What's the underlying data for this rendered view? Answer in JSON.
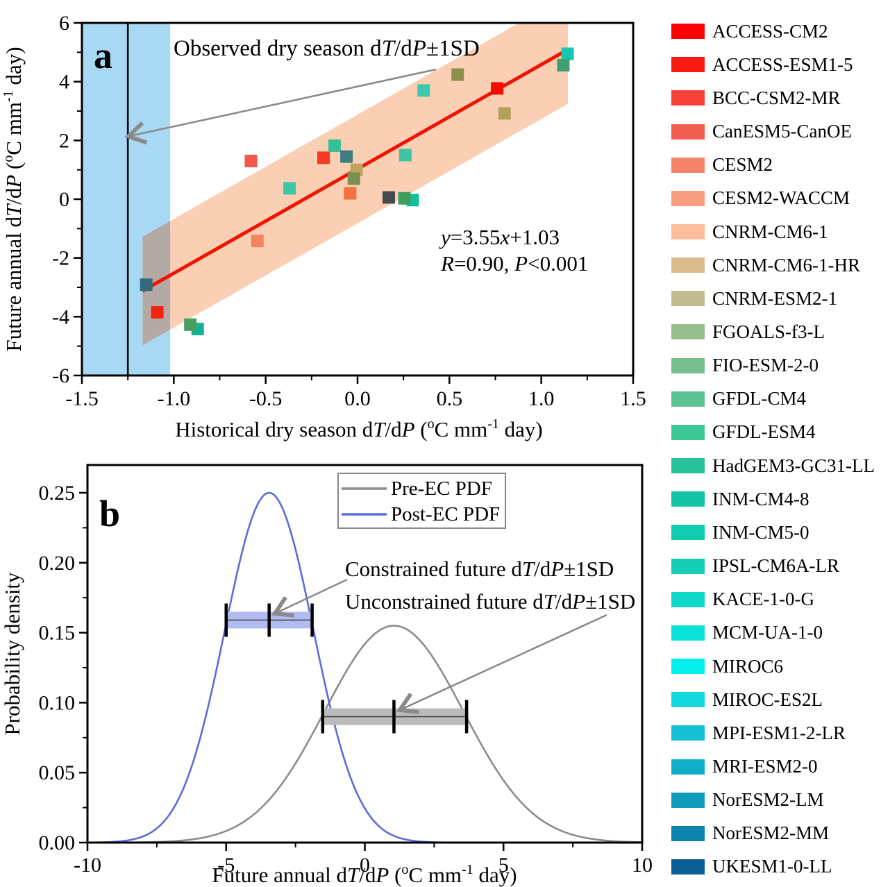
{
  "labels": {
    "panel_a": "a",
    "panel_b": "b",
    "obs": {
      "t1": "Observed dry season d",
      "i1": "T",
      "t2": "/d",
      "i2": "P",
      "t3": "±1SD"
    },
    "eq1": {
      "i1": "y",
      "t1": "=3.55",
      "i2": "x",
      "t2": "+1.03"
    },
    "eq2": {
      "i1": "R",
      "t1": "=0.90, ",
      "i2": "P",
      "t2": "<0.001"
    },
    "constrained": {
      "t1": "Constrained future d",
      "i1": "T",
      "t2": "/d",
      "i2": "P",
      "t3": "±1SD"
    },
    "unconstrained": {
      "t1": "Unconstrained future d",
      "i1": "T",
      "t2": "/d",
      "i2": "P",
      "t3": "±1SD"
    },
    "pdf_legend": {
      "pre": "Pre-EC PDF",
      "post": "Post-EC PDF"
    },
    "xlabel_a": {
      "t1": "Historical dry season d",
      "i1": "T",
      "t2": "/d",
      "i2": "P",
      "t3": " (",
      "s1": "o",
      "t4": "C mm",
      "s2": "-1",
      "t5": " day)"
    },
    "ylabel_a": {
      "t1": "Future annual d",
      "i1": "T",
      "t2": "/d",
      "i2": "P",
      "t3": " (",
      "s1": "o",
      "t4": "C mm",
      "s2": "-1",
      "t5": " day)"
    },
    "xlabel_b": {
      "t1": "Future annual d",
      "i1": "T",
      "t2": "/d",
      "i2": "P",
      "t3": " (",
      "s1": "o",
      "t4": "C mm",
      "s2": "-1",
      "t5": " day)"
    },
    "ylabel_b": "Probability density"
  },
  "chart_data": [
    {
      "id": "a",
      "type": "scatter",
      "xlabel": "Historical dry season dT/dP (°C mm⁻¹ day)",
      "ylabel": "Future annual dT/dP (°C mm⁻¹ day)",
      "xlim": [
        -1.5,
        1.5
      ],
      "ylim": [
        -6,
        6
      ],
      "x_major_ticks": [
        -1.5,
        -1.0,
        -0.5,
        0.0,
        0.5,
        1.0,
        1.5
      ],
      "x_tick_labels": [
        "-1.5",
        "-1.0",
        "-0.5",
        "0.0",
        "0.5",
        "1.0",
        "1.5"
      ],
      "x_minor_step": 0.25,
      "y_major_ticks": [
        -6,
        -4,
        -2,
        0,
        2,
        4,
        6
      ],
      "y_tick_labels": [
        "-6",
        "-4",
        "-2",
        "0",
        "2",
        "4",
        "6"
      ],
      "y_minor_step": 1,
      "equation": "y=3.55x+1.03",
      "stats": "R=0.90, P<0.001",
      "annotation": "Observed dry season dT/dP±1SD",
      "regression_line": {
        "slope": 3.55,
        "intercept": 1.03,
        "x_start": -1.17,
        "x_end": 1.115,
        "color": "#ee1403"
      },
      "confidence_band": {
        "half_width": 1.85,
        "x_start": -1.17,
        "x_end": 1.145,
        "color": "#facfb3"
      },
      "observed_band": {
        "x_start": -1.5,
        "x_end": -1.02,
        "center_line_x": -1.25,
        "color": "#a7d9f5",
        "center_line_color": "#000000"
      },
      "overlap_region_color": "#b4a9a5",
      "marker_size_px": 18,
      "points": [
        {
          "x": -1.15,
          "y": -2.91,
          "color": "#326b7e"
        },
        {
          "x": -1.09,
          "y": -3.85,
          "color": "#f42410"
        },
        {
          "x": -0.87,
          "y": -4.42,
          "color": "#12b394"
        },
        {
          "x": -0.91,
          "y": -4.27,
          "color": "#4a9e60"
        },
        {
          "x": -0.545,
          "y": -1.42,
          "color": "#f5835f"
        },
        {
          "x": -0.58,
          "y": 1.3,
          "color": "#f15849"
        },
        {
          "x": -0.37,
          "y": 0.37,
          "color": "#3ec7a4"
        },
        {
          "x": -0.185,
          "y": 1.41,
          "color": "#f23a26"
        },
        {
          "x": -0.125,
          "y": 1.82,
          "color": "#38c094"
        },
        {
          "x": -0.06,
          "y": 1.45,
          "color": "#3e7d80"
        },
        {
          "x": -0.005,
          "y": 1.0,
          "color": "#c2a35d"
        },
        {
          "x": -0.02,
          "y": 0.7,
          "color": "#7d8d50"
        },
        {
          "x": -0.04,
          "y": 0.2,
          "color": "#f4703e"
        },
        {
          "x": 0.17,
          "y": 0.06,
          "color": "#474850"
        },
        {
          "x": 0.3,
          "y": -0.03,
          "color": "#10bf9f"
        },
        {
          "x": 0.255,
          "y": 0.03,
          "color": "#3f9e5e"
        },
        {
          "x": 0.26,
          "y": 1.5,
          "color": "#41c4a3"
        },
        {
          "x": 0.36,
          "y": 3.7,
          "color": "#3cc9ae"
        },
        {
          "x": 0.545,
          "y": 4.24,
          "color": "#8e8f4c"
        },
        {
          "x": 0.76,
          "y": 3.77,
          "color": "#f60d00"
        },
        {
          "x": 0.8,
          "y": 2.92,
          "color": "#b49f5c"
        },
        {
          "x": 1.143,
          "y": 4.95,
          "color": "#17c7b0"
        },
        {
          "x": 1.12,
          "y": 4.56,
          "color": "#3f9e74"
        }
      ]
    },
    {
      "id": "b",
      "type": "line",
      "xlabel": "Future annual dT/dP (°C mm⁻¹ day)",
      "ylabel": "Probability density",
      "xlim": [
        -10,
        10
      ],
      "ylim": [
        0,
        0.27
      ],
      "x_major_ticks": [
        -10,
        -5,
        0,
        5,
        10
      ],
      "x_tick_labels": [
        "-10",
        "-5",
        "0",
        "5",
        "10"
      ],
      "x_minor_step": 2.5,
      "y_major_ticks": [
        0,
        0.05,
        0.1,
        0.15,
        0.2,
        0.25
      ],
      "y_tick_labels": [
        "0.00",
        "0.05",
        "0.10",
        "0.15",
        "0.20",
        "0.25"
      ],
      "y_minor_step": 0.025,
      "legend_position": "top-center",
      "series": [
        {
          "name": "Pre-EC PDF",
          "shape": "normal",
          "mean": 1.05,
          "sd": 2.5,
          "peak": 0.155,
          "color": "#8c8c8c"
        },
        {
          "name": "Post-EC PDF",
          "shape": "normal",
          "mean": -3.45,
          "sd": 1.6,
          "peak": 0.25,
          "color": "#5b6cdb"
        }
      ],
      "error_bars": [
        {
          "label": "Constrained future dT/dP±1SD",
          "center": -3.45,
          "low": -5.0,
          "high": -1.9,
          "y": 0.159,
          "fill": "#b3bcf2"
        },
        {
          "label": "Unconstrained future dT/dP±1SD",
          "center": 1.05,
          "low": -1.52,
          "high": 3.67,
          "y": 0.09,
          "fill": "#bbbbbb"
        }
      ]
    }
  ],
  "legend": {
    "items": [
      {
        "label": "ACCESS-CM2",
        "color": "#fb0407"
      },
      {
        "label": "ACCESS-ESM1-5",
        "color": "#fb1b15"
      },
      {
        "label": "BCC-CSM2-MR",
        "color": "#f54136"
      },
      {
        "label": "CanESM5-CanOE",
        "color": "#f25b50"
      },
      {
        "label": "CESM2",
        "color": "#f5836a"
      },
      {
        "label": "CESM2-WACCM",
        "color": "#f79e81"
      },
      {
        "label": "CNRM-CM6-1",
        "color": "#fbbd9a"
      },
      {
        "label": "CNRM-CM6-1-HR",
        "color": "#dcbc8d"
      },
      {
        "label": "CNRM-ESM2-1",
        "color": "#c1bd90"
      },
      {
        "label": "FGOALS-f3-L",
        "color": "#97bf8d"
      },
      {
        "label": "FIO-ESM-2-0",
        "color": "#76be8d"
      },
      {
        "label": "GFDL-CM4",
        "color": "#5bc393"
      },
      {
        "label": "GFDL-ESM4",
        "color": "#3ec897"
      },
      {
        "label": "HadGEM3-GC31-LL",
        "color": "#26c39b"
      },
      {
        "label": "INM-CM4-8",
        "color": "#15c4a3"
      },
      {
        "label": "INM-CM5-0",
        "color": "#11cbae"
      },
      {
        "label": "IPSL-CM6A-LR",
        "color": "#14cdb5"
      },
      {
        "label": "KACE-1-0-G",
        "color": "#0ed8c7"
      },
      {
        "label": "MCM-UA-1-0",
        "color": "#09e2d7"
      },
      {
        "label": "MIROC6",
        "color": "#04f0ec"
      },
      {
        "label": "MIROC-ES2L",
        "color": "#13d8de"
      },
      {
        "label": "MPI-ESM1-2-LR",
        "color": "#13c0d5"
      },
      {
        "label": "MRI-ESM2-0",
        "color": "#10aec6"
      },
      {
        "label": "NorESM2-LM",
        "color": "#0e9cbb"
      },
      {
        "label": "NorESM2-MM",
        "color": "#0c83ac"
      },
      {
        "label": "UKESM1-0-LL",
        "color": "#0b5e94"
      }
    ]
  }
}
